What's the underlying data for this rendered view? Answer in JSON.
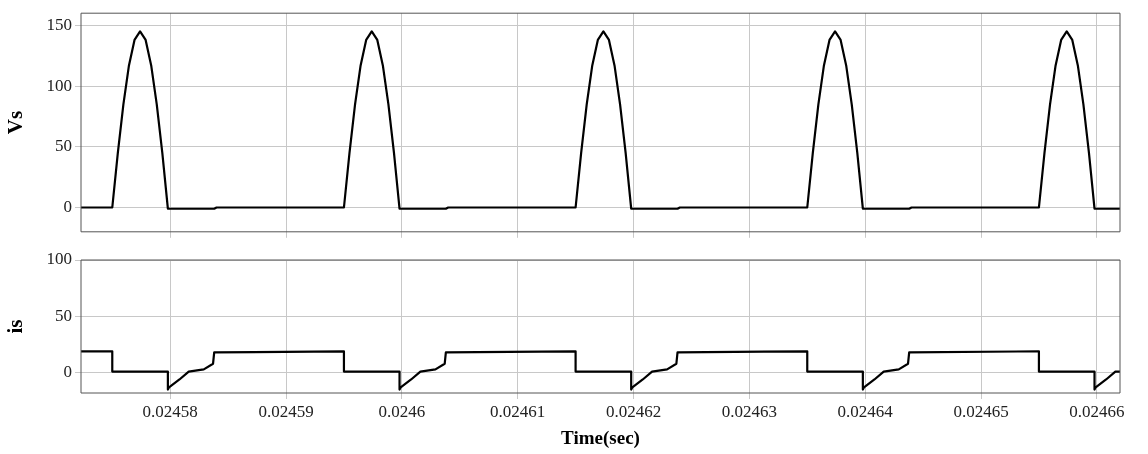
{
  "chart_data": [
    {
      "type": "line",
      "ylabel": "Vs",
      "color": "#000000",
      "grid": true,
      "tick_labels": "y",
      "xlim": [
        0.0245723,
        0.024662
      ],
      "ylim": [
        -20,
        160
      ],
      "yticks": [
        0,
        50,
        100,
        150
      ],
      "xticks": [
        0.02458,
        0.02459,
        0.0246,
        0.02461,
        0.02462,
        0.02463,
        0.02464,
        0.02465,
        0.02466
      ],
      "x": [
        0.0245723,
        0.024575,
        0.02457548,
        0.02457596,
        0.02457644,
        0.02457692,
        0.0245774,
        0.02457788,
        0.02457836,
        0.02457884,
        0.02457932,
        0.0245798,
        0.0245838,
        0.024584,
        0.024595,
        0.02459548,
        0.02459596,
        0.02459644,
        0.02459692,
        0.0245974,
        0.02459788,
        0.02459836,
        0.02459884,
        0.02459932,
        0.0245998,
        0.0246038,
        0.024604,
        0.024615,
        0.02461548,
        0.02461596,
        0.02461644,
        0.02461692,
        0.0246174,
        0.02461788,
        0.02461836,
        0.02461884,
        0.02461932,
        0.0246198,
        0.0246238,
        0.024624,
        0.024635,
        0.02463548,
        0.02463596,
        0.02463644,
        0.02463692,
        0.0246374,
        0.02463788,
        0.02463836,
        0.02463884,
        0.02463932,
        0.0246398,
        0.0246438,
        0.024644,
        0.024655,
        0.02465548,
        0.02465596,
        0.02465644,
        0.02465692,
        0.0246574,
        0.02465788,
        0.02465836,
        0.02465884,
        0.02465932,
        0.0246598,
        0.024662
      ],
      "values": [
        0,
        0,
        45,
        85,
        117,
        138,
        145,
        138,
        117,
        85,
        45,
        -1,
        -1,
        0,
        0,
        45,
        85,
        117,
        138,
        145,
        138,
        117,
        85,
        45,
        -1,
        -1,
        0,
        0,
        45,
        85,
        117,
        138,
        145,
        138,
        117,
        85,
        45,
        -1,
        -1,
        0,
        0,
        45,
        85,
        117,
        138,
        145,
        138,
        117,
        85,
        45,
        -1,
        -1,
        0,
        0,
        45,
        85,
        117,
        138,
        145,
        138,
        117,
        85,
        45,
        -1,
        -1
      ]
    },
    {
      "type": "line",
      "ylabel": "is",
      "xlabel": "Time(sec)",
      "color": "#000000",
      "grid": true,
      "xlim": [
        0.0245723,
        0.024662
      ],
      "ylim": [
        -18,
        100
      ],
      "yticks": [
        0,
        50,
        100
      ],
      "xticks": [
        0.02458,
        0.02459,
        0.0246,
        0.02461,
        0.02462,
        0.02463,
        0.02464,
        0.02465,
        0.02466
      ],
      "x": [
        0.0245723,
        0.024575,
        0.024575,
        0.0245798,
        0.0245798,
        0.0245799,
        0.0245808,
        0.0245816,
        0.0245829,
        0.0245837,
        0.0245838,
        0.024595,
        0.024595,
        0.0245998,
        0.0245998,
        0.0245999,
        0.0246008,
        0.0246016,
        0.0246029,
        0.0246037,
        0.0246038,
        0.024615,
        0.024615,
        0.0246198,
        0.0246198,
        0.0246199,
        0.0246208,
        0.0246216,
        0.0246229,
        0.0246237,
        0.0246238,
        0.024635,
        0.024635,
        0.0246398,
        0.0246398,
        0.0246399,
        0.0246408,
        0.0246416,
        0.0246429,
        0.0246437,
        0.0246438,
        0.024655,
        0.024655,
        0.0246598,
        0.0246598,
        0.0246599,
        0.0246608,
        0.0246616,
        0.024662
      ],
      "values": [
        19,
        19,
        1,
        1,
        -15,
        -13,
        -6,
        1,
        3,
        8,
        18,
        19,
        1,
        1,
        -15,
        -13,
        -6,
        1,
        3,
        8,
        18,
        19,
        1,
        1,
        -15,
        -13,
        -6,
        1,
        3,
        8,
        18,
        19,
        1,
        1,
        -15,
        -13,
        -6,
        1,
        3,
        8,
        18,
        19,
        1,
        1,
        -15,
        -13,
        -6,
        1,
        1
      ]
    }
  ]
}
